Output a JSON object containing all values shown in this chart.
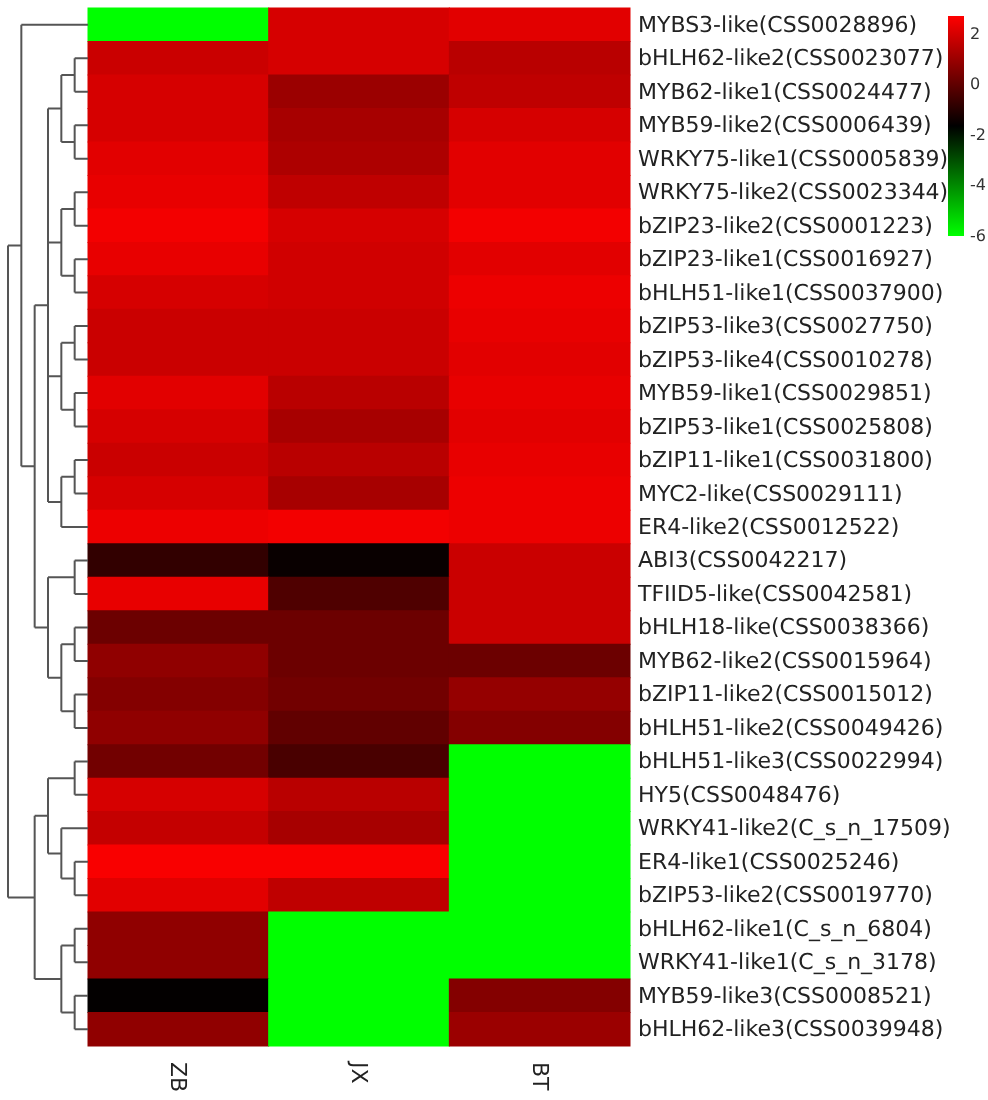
{
  "chart_data": {
    "type": "heatmap",
    "categories": [
      "ZB",
      "JX",
      "BT"
    ],
    "y_categories": [
      "MYBS3-like(CSS0028896)",
      "bHLH62-like2(CSS0023077)",
      "MYB62-like1(CSS0024477)",
      "MYB59-like2(CSS0006439)",
      "WRKY75-like1(CSS0005839)",
      "WRKY75-like2(CSS0023344)",
      "bZIP23-like2(CSS0001223)",
      "bZIP23-like1(CSS0016927)",
      "bHLH51-like1(CSS0037900)",
      "bZIP53-like3(CSS0027750)",
      "bZIP53-like4(CSS0010278)",
      "MYB59-like1(CSS0029851)",
      "bZIP53-like1(CSS0025808)",
      "bZIP11-like1(CSS0031800)",
      "MYC2-like(CSS0029111)",
      "ER4-like2(CSS0012522)",
      "ABI3(CSS0042217)",
      "TFIID5-like(CSS0042581)",
      "bHLH18-like(CSS0038366)",
      "MYB62-like2(CSS0015964)",
      "bZIP11-like2(CSS0015012)",
      "bHLH51-like2(CSS0049426)",
      "bHLH51-like3(CSS0022994)",
      "HY5(CSS0048476)",
      "WRKY41-like2(C_s_n_17509)",
      "ER4-like1(CSS0025246)",
      "bZIP53-like2(CSS0019770)",
      "bHLH62-like1(C_s_n_6804)",
      "WRKY41-like1(C_s_n_3178)",
      "MYB59-like3(CSS0008521)",
      "bHLH62-like3(CSS0039948)"
    ],
    "cells": [
      [
        -6,
        2.0,
        2.2
      ],
      [
        1.8,
        2.0,
        1.5
      ],
      [
        2.0,
        1.0,
        1.6
      ],
      [
        2.0,
        1.2,
        2.0
      ],
      [
        2.2,
        1.3,
        2.2
      ],
      [
        2.3,
        1.6,
        2.2
      ],
      [
        2.5,
        2.0,
        2.5
      ],
      [
        2.3,
        1.9,
        2.2
      ],
      [
        2.0,
        1.9,
        2.4
      ],
      [
        1.8,
        1.8,
        2.3
      ],
      [
        1.8,
        1.8,
        2.2
      ],
      [
        2.2,
        1.5,
        2.3
      ],
      [
        2.0,
        1.2,
        2.2
      ],
      [
        1.8,
        1.5,
        2.3
      ],
      [
        2.0,
        1.2,
        2.4
      ],
      [
        2.4,
        2.5,
        2.4
      ],
      [
        -0.8,
        -1.5,
        1.8
      ],
      [
        2.3,
        -0.3,
        1.8
      ],
      [
        0.2,
        0.2,
        1.8
      ],
      [
        0.8,
        0.2,
        0.2
      ],
      [
        0.6,
        0.3,
        0.9
      ],
      [
        0.8,
        0,
        0.6
      ],
      [
        0.3,
        -0.4,
        -6
      ],
      [
        2.0,
        1.5,
        -6
      ],
      [
        1.7,
        1.2,
        -6
      ],
      [
        2.6,
        2.6,
        -6
      ],
      [
        2.2,
        1.6,
        -6
      ],
      [
        0.8,
        -6,
        -6
      ],
      [
        0.8,
        -6,
        -6
      ],
      [
        -1.6,
        -6,
        0.6
      ],
      [
        0.8,
        -6,
        1.0
      ]
    ],
    "clim": [
      -6,
      2.7
    ],
    "cticks": [
      2,
      0,
      -2,
      -4,
      -6
    ]
  }
}
